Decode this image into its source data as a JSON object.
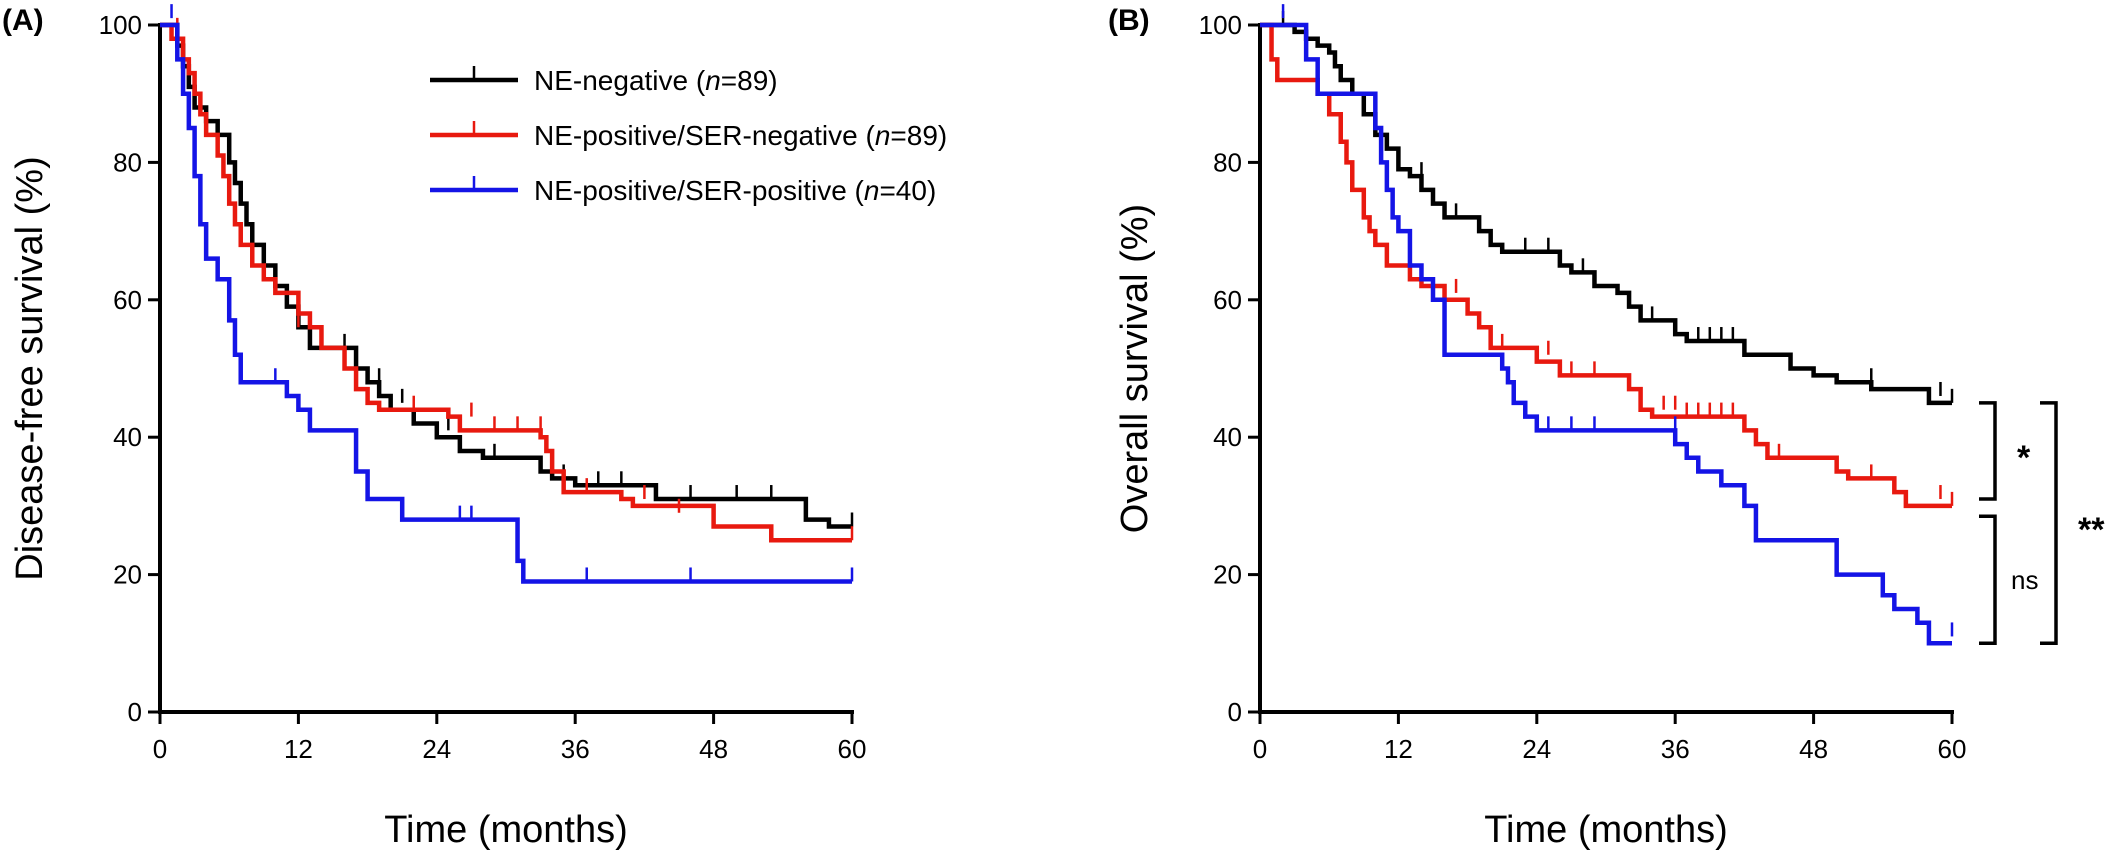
{
  "chart_data": [
    {
      "type": "line",
      "panel_label": "(A)",
      "xlabel": "Time (months)",
      "ylabel": "Disease-free survival (%)",
      "xlim": [
        0,
        60
      ],
      "ylim": [
        0,
        100
      ],
      "xticks": [
        0,
        12,
        24,
        36,
        48,
        60
      ],
      "yticks": [
        0,
        20,
        40,
        60,
        80,
        100
      ],
      "grid": false,
      "legend_placement": "top-right",
      "legend": [
        {
          "pre": "NE-negative (",
          "italic": "n",
          "post": "=89)"
        },
        {
          "pre": "NE-positive/SER-negative (",
          "italic": "n",
          "post": "=89)"
        },
        {
          "pre": "NE-positive/SER-positive (",
          "italic": "n",
          "post": "=40)"
        }
      ],
      "series": [
        {
          "name": "NE-negative (n=89)",
          "color": "#000000",
          "steps": [
            [
              0,
              100
            ],
            [
              1.5,
              97
            ],
            [
              2,
              94
            ],
            [
              2.5,
              91
            ],
            [
              3,
              88
            ],
            [
              4,
              86
            ],
            [
              5,
              84
            ],
            [
              6,
              80
            ],
            [
              6.5,
              77
            ],
            [
              7,
              74
            ],
            [
              7.5,
              71
            ],
            [
              8,
              68
            ],
            [
              9,
              65
            ],
            [
              10,
              62
            ],
            [
              11,
              59
            ],
            [
              12,
              56
            ],
            [
              13,
              53
            ],
            [
              17,
              50
            ],
            [
              18,
              48
            ],
            [
              19,
              46
            ],
            [
              20,
              44
            ],
            [
              22,
              42
            ],
            [
              24,
              40
            ],
            [
              26,
              38
            ],
            [
              28,
              37
            ],
            [
              33,
              35
            ],
            [
              34,
              34
            ],
            [
              36,
              33
            ],
            [
              43,
              31
            ],
            [
              56,
              28
            ],
            [
              58,
              27
            ],
            [
              60,
              27
            ]
          ],
          "censored": [
            [
              2,
              96
            ],
            [
              14,
              53
            ],
            [
              16,
              53
            ],
            [
              19,
              48
            ],
            [
              21,
              45
            ],
            [
              25,
              41
            ],
            [
              29,
              37
            ],
            [
              35,
              34
            ],
            [
              38,
              33
            ],
            [
              40,
              33
            ],
            [
              46,
              31
            ],
            [
              50,
              31
            ],
            [
              53,
              31
            ],
            [
              60,
              27
            ]
          ]
        },
        {
          "name": "NE-positive/SER-negative (n=89)",
          "color": "#e8190f",
          "steps": [
            [
              0,
              100
            ],
            [
              1,
              98
            ],
            [
              2,
              95
            ],
            [
              2.5,
              93
            ],
            [
              3,
              90
            ],
            [
              3.5,
              87
            ],
            [
              4,
              84
            ],
            [
              5,
              81
            ],
            [
              5.5,
              78
            ],
            [
              6,
              74
            ],
            [
              6.5,
              71
            ],
            [
              7,
              68
            ],
            [
              8,
              65
            ],
            [
              9,
              63
            ],
            [
              10,
              61
            ],
            [
              12,
              58
            ],
            [
              13,
              56
            ],
            [
              14,
              53
            ],
            [
              16,
              50
            ],
            [
              17,
              47
            ],
            [
              18,
              45
            ],
            [
              19,
              44
            ],
            [
              25,
              43
            ],
            [
              26,
              41
            ],
            [
              33,
              40
            ],
            [
              33.5,
              38
            ],
            [
              34,
              35
            ],
            [
              35,
              32
            ],
            [
              40,
              31
            ],
            [
              41,
              30
            ],
            [
              48,
              27
            ],
            [
              53,
              25
            ],
            [
              60,
              25
            ]
          ],
          "censored": [
            [
              1.5,
              99
            ],
            [
              8,
              66
            ],
            [
              12,
              56
            ],
            [
              22,
              44
            ],
            [
              27,
              43
            ],
            [
              29,
              41
            ],
            [
              31,
              41
            ],
            [
              33,
              41
            ],
            [
              37,
              32
            ],
            [
              42,
              31
            ],
            [
              45,
              29
            ],
            [
              60,
              25
            ]
          ]
        },
        {
          "name": "NE-positive/SER-positive (n=40)",
          "color": "#1414e6",
          "steps": [
            [
              0,
              100
            ],
            [
              1.5,
              95
            ],
            [
              2,
              90
            ],
            [
              2.5,
              85
            ],
            [
              3,
              78
            ],
            [
              3.5,
              71
            ],
            [
              4,
              66
            ],
            [
              5,
              63
            ],
            [
              6,
              57
            ],
            [
              6.5,
              52
            ],
            [
              7,
              48
            ],
            [
              11,
              46
            ],
            [
              12,
              44
            ],
            [
              13,
              41
            ],
            [
              17,
              35
            ],
            [
              18,
              31
            ],
            [
              21,
              28
            ],
            [
              31,
              22
            ],
            [
              31.5,
              19
            ],
            [
              60,
              19
            ]
          ],
          "censored": [
            [
              1,
              101
            ],
            [
              10,
              48
            ],
            [
              26,
              28
            ],
            [
              27,
              28
            ],
            [
              37,
              19
            ],
            [
              46,
              19
            ],
            [
              60,
              19
            ]
          ]
        }
      ]
    },
    {
      "type": "line",
      "panel_label": "(B)",
      "xlabel": "Time (months)",
      "ylabel": "Overall survival (%)",
      "xlim": [
        0,
        60
      ],
      "ylim": [
        0,
        100
      ],
      "xticks": [
        0,
        12,
        24,
        36,
        48,
        60
      ],
      "yticks": [
        0,
        20,
        40,
        60,
        80,
        100
      ],
      "grid": false,
      "series": [
        {
          "name": "NE-negative (n=89)",
          "color": "#000000",
          "steps": [
            [
              0,
              100
            ],
            [
              3,
              99
            ],
            [
              4,
              98
            ],
            [
              5,
              97
            ],
            [
              6,
              96
            ],
            [
              6.5,
              94
            ],
            [
              7,
              92
            ],
            [
              8,
              90
            ],
            [
              9,
              87
            ],
            [
              10,
              84
            ],
            [
              11,
              82
            ],
            [
              12,
              79
            ],
            [
              13,
              78
            ],
            [
              14,
              76
            ],
            [
              15,
              74
            ],
            [
              16,
              72
            ],
            [
              19,
              70
            ],
            [
              20,
              68
            ],
            [
              21,
              67
            ],
            [
              26,
              65
            ],
            [
              27,
              64
            ],
            [
              29,
              62
            ],
            [
              31,
              61
            ],
            [
              32,
              59
            ],
            [
              33,
              57
            ],
            [
              36,
              55
            ],
            [
              37,
              54
            ],
            [
              42,
              52
            ],
            [
              46,
              50
            ],
            [
              48,
              49
            ],
            [
              50,
              48
            ],
            [
              53,
              47
            ],
            [
              58,
              45
            ],
            [
              60,
              45
            ]
          ],
          "censored": [
            [
              2,
              100
            ],
            [
              14,
              78
            ],
            [
              17,
              72
            ],
            [
              23,
              67
            ],
            [
              25,
              67
            ],
            [
              28,
              64
            ],
            [
              34,
              57
            ],
            [
              38,
              54
            ],
            [
              39,
              54
            ],
            [
              40,
              54
            ],
            [
              41,
              54
            ],
            [
              53,
              48
            ],
            [
              59,
              46
            ],
            [
              60,
              45
            ]
          ]
        },
        {
          "name": "NE-positive/SER-negative (n=89)",
          "color": "#e8190f",
          "steps": [
            [
              0,
              100
            ],
            [
              1,
              95
            ],
            [
              1.5,
              92
            ],
            [
              5,
              90
            ],
            [
              6,
              87
            ],
            [
              7,
              83
            ],
            [
              7.5,
              80
            ],
            [
              8,
              76
            ],
            [
              9,
              72
            ],
            [
              9.5,
              70
            ],
            [
              10,
              68
            ],
            [
              11,
              65
            ],
            [
              13,
              63
            ],
            [
              14,
              62
            ],
            [
              16,
              60
            ],
            [
              18,
              58
            ],
            [
              19,
              56
            ],
            [
              20,
              53
            ],
            [
              24,
              51
            ],
            [
              26,
              49
            ],
            [
              32,
              47
            ],
            [
              33,
              44
            ],
            [
              34,
              43
            ],
            [
              42,
              41
            ],
            [
              43,
              39
            ],
            [
              44,
              37
            ],
            [
              50,
              35
            ],
            [
              51,
              34
            ],
            [
              55,
              32
            ],
            [
              56,
              30
            ],
            [
              60,
              30
            ]
          ],
          "censored": [
            [
              17,
              61
            ],
            [
              21,
              53
            ],
            [
              25,
              52
            ],
            [
              27,
              49
            ],
            [
              29,
              49
            ],
            [
              35,
              44
            ],
            [
              36,
              44
            ],
            [
              37,
              43
            ],
            [
              38,
              43
            ],
            [
              39,
              43
            ],
            [
              40,
              43
            ],
            [
              41,
              43
            ],
            [
              45,
              37
            ],
            [
              53,
              34
            ],
            [
              59,
              31
            ],
            [
              60,
              30
            ]
          ]
        },
        {
          "name": "NE-positive/SER-positive (n=40)",
          "color": "#1414e6",
          "steps": [
            [
              0,
              100
            ],
            [
              4,
              95
            ],
            [
              5,
              90
            ],
            [
              10,
              85
            ],
            [
              10.5,
              80
            ],
            [
              11,
              76
            ],
            [
              11.5,
              72
            ],
            [
              12,
              70
            ],
            [
              13,
              65
            ],
            [
              14,
              63
            ],
            [
              15,
              60
            ],
            [
              16,
              52
            ],
            [
              21,
              50
            ],
            [
              21.5,
              48
            ],
            [
              22,
              45
            ],
            [
              23,
              43
            ],
            [
              24,
              41
            ],
            [
              36,
              39
            ],
            [
              37,
              37
            ],
            [
              38,
              35
            ],
            [
              40,
              33
            ],
            [
              42,
              30
            ],
            [
              43,
              25
            ],
            [
              48,
              25
            ],
            [
              50,
              20
            ],
            [
              54,
              17
            ],
            [
              55,
              15
            ],
            [
              57,
              13
            ],
            [
              58,
              10
            ],
            [
              60,
              10
            ]
          ],
          "censored": [
            [
              2,
              101
            ],
            [
              25,
              41
            ],
            [
              27,
              41
            ],
            [
              29,
              41
            ],
            [
              36,
              41
            ],
            [
              60,
              11
            ]
          ]
        }
      ],
      "annotations": [
        {
          "label": "*",
          "between": [
            45,
            31
          ]
        },
        {
          "label": "ns",
          "between": [
            28.5,
            10
          ]
        },
        {
          "label": "**",
          "between": [
            45,
            10
          ]
        }
      ]
    }
  ]
}
